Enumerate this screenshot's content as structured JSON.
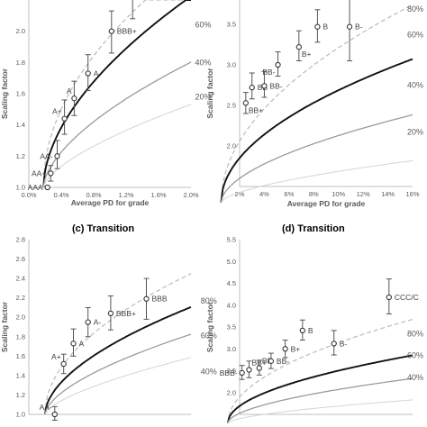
{
  "chart_data": [
    {
      "type": "line",
      "title": "",
      "xlabel": "Average PD for grade",
      "ylabel": "Scaling factor",
      "xlim": [
        0,
        2.0
      ],
      "ylim": [
        1.0,
        2.2
      ],
      "xticks": [
        {
          "v": 0,
          "label": "0.0%"
        },
        {
          "v": 0.4,
          "label": "0.4%"
        },
        {
          "v": 0.8,
          "label": "0.8%"
        },
        {
          "v": 1.2,
          "label": "1.2%"
        },
        {
          "v": 1.6,
          "label": "1.6%"
        },
        {
          "v": 2.0,
          "label": "2.0%"
        }
      ],
      "yticks": [
        {
          "v": 1.0,
          "label": "1.0"
        },
        {
          "v": 1.2,
          "label": "1.2"
        },
        {
          "v": 1.4,
          "label": "1.4"
        },
        {
          "v": 1.6,
          "label": "1.6"
        },
        {
          "v": 1.8,
          "label": "1.8"
        },
        {
          "v": 2.0,
          "label": "2.0"
        }
      ],
      "grid": false,
      "curves": [
        {
          "style": "dashed",
          "x0": 0.18,
          "y0": 1.0,
          "a": 1.07,
          "b": 0.5
        },
        {
          "style": "solid-black",
          "x0": 0.18,
          "y0": 1.0,
          "a": 0.88,
          "b": 0.55
        },
        {
          "style": "solid-gray",
          "x0": 0.18,
          "y0": 1.0,
          "a": 0.56,
          "b": 0.6
        },
        {
          "style": "solid-light",
          "x0": 0.18,
          "y0": 1.0,
          "a": 0.36,
          "b": 0.65
        }
      ],
      "percent_labels": [
        {
          "text": "60%",
          "x": 2.05,
          "y": 2.04
        },
        {
          "text": "40%",
          "x": 2.05,
          "y": 1.8
        },
        {
          "text": "20%",
          "x": 2.05,
          "y": 1.58
        }
      ],
      "points": [
        {
          "label": "AAA",
          "x": 0.23,
          "y": 1.0,
          "lo": 1.0,
          "hi": 1.0,
          "label_pos": "left"
        },
        {
          "label": "AA+",
          "x": 0.27,
          "y": 1.09,
          "lo": 1.04,
          "hi": 1.14,
          "label_pos": "left"
        },
        {
          "label": "AA-",
          "x": 0.35,
          "y": 1.2,
          "lo": 1.12,
          "hi": 1.3,
          "label_pos": "left"
        },
        {
          "label": "A+",
          "x": 0.44,
          "y": 1.44,
          "lo": 1.34,
          "hi": 1.56,
          "label_pos": "above-left"
        },
        {
          "label": "A",
          "x": 0.56,
          "y": 1.57,
          "lo": 1.46,
          "hi": 1.68,
          "label_pos": "above-left"
        },
        {
          "label": "A-",
          "x": 0.73,
          "y": 1.73,
          "lo": 1.62,
          "hi": 1.85,
          "label_pos": "right"
        },
        {
          "label": "BBB+",
          "x": 1.02,
          "y": 2.0,
          "lo": 1.86,
          "hi": 2.13,
          "label_pos": "right"
        },
        {
          "label": "",
          "x": 1.28,
          "y": 2.22,
          "lo": 2.08,
          "hi": 2.34,
          "label_pos": "none"
        }
      ]
    },
    {
      "type": "line",
      "title": "",
      "xlabel": "Average PD for grade",
      "ylabel": "Scaling factor",
      "xlim": [
        2,
        16
      ],
      "ylim": [
        1.5,
        3.8
      ],
      "xticks": [
        {
          "v": 2,
          "label": "2%"
        },
        {
          "v": 4,
          "label": "4%"
        },
        {
          "v": 6,
          "label": "6%"
        },
        {
          "v": 8,
          "label": "8%"
        },
        {
          "v": 10,
          "label": "10%"
        },
        {
          "v": 12,
          "label": "12%"
        },
        {
          "v": 14,
          "label": "14%"
        },
        {
          "v": 16,
          "label": "16%"
        }
      ],
      "yticks": [
        {
          "v": 2.0,
          "label": "2.0"
        },
        {
          "v": 2.5,
          "label": "2.5"
        },
        {
          "v": 3.0,
          "label": "3.0"
        },
        {
          "v": 3.5,
          "label": "3.5"
        }
      ],
      "grid": false,
      "curves": [
        {
          "style": "dashed",
          "x0": 0.5,
          "y0": 1.3,
          "a": 0.62,
          "b": 0.5
        },
        {
          "style": "solid-black",
          "x0": 0.5,
          "y0": 1.3,
          "a": 0.45,
          "b": 0.5
        },
        {
          "style": "solid-gray",
          "x0": 0.5,
          "y0": 1.3,
          "a": 0.24,
          "b": 0.55
        },
        {
          "style": "solid-light",
          "x0": 0.5,
          "y0": 1.3,
          "a": 0.1,
          "b": 0.6
        }
      ],
      "percent_labels": [
        {
          "text": "80%",
          "x": 16.4,
          "y": 3.82
        },
        {
          "text": "60%",
          "x": 16.4,
          "y": 3.37
        },
        {
          "text": "40%",
          "x": 16.4,
          "y": 2.75
        },
        {
          "text": "20%",
          "x": 16.4,
          "y": 2.17
        }
      ],
      "points": [
        {
          "label": "BB+",
          "x": 2.5,
          "y": 2.53,
          "lo": 2.4,
          "hi": 2.66,
          "label_pos": "below-right"
        },
        {
          "label": "BB",
          "x": 3.0,
          "y": 2.72,
          "lo": 2.58,
          "hi": 2.9,
          "label_pos": "right"
        },
        {
          "label": "BB-",
          "x": 4.0,
          "y": 2.74,
          "lo": 2.6,
          "hi": 2.92,
          "label_pos": "right"
        },
        {
          "label": "BB-",
          "x": 5.1,
          "y": 3.0,
          "lo": 2.86,
          "hi": 3.16,
          "label_pos": "below-left"
        },
        {
          "label": "B+",
          "x": 6.8,
          "y": 3.22,
          "lo": 3.05,
          "hi": 3.42,
          "label_pos": "below-right"
        },
        {
          "label": "B",
          "x": 8.3,
          "y": 3.47,
          "lo": 3.28,
          "hi": 3.68,
          "label_pos": "right"
        },
        {
          "label": "B-",
          "x": 10.9,
          "y": 3.47,
          "lo": 3.05,
          "hi": 3.9,
          "label_pos": "right"
        }
      ]
    },
    {
      "type": "line",
      "title": "(c) Transition",
      "xlabel": "",
      "ylabel": "Scaling factor",
      "xlim": [
        0,
        2.0
      ],
      "ylim": [
        1.0,
        2.8
      ],
      "xticks": [],
      "yticks": [
        {
          "v": 1.0,
          "label": "1.0"
        },
        {
          "v": 1.2,
          "label": "1.2"
        },
        {
          "v": 1.4,
          "label": "1.4"
        },
        {
          "v": 1.6,
          "label": "1.6"
        },
        {
          "v": 1.8,
          "label": "1.8"
        },
        {
          "v": 2.0,
          "label": "2.0"
        },
        {
          "v": 2.2,
          "label": "2.2"
        },
        {
          "v": 2.4,
          "label": "2.4"
        },
        {
          "v": 2.6,
          "label": "2.6"
        },
        {
          "v": 2.8,
          "label": "2.8"
        }
      ],
      "grid": false,
      "curves": [
        {
          "style": "dashed",
          "x0": 0.2,
          "y0": 1.0,
          "a": 1.08,
          "b": 0.5
        },
        {
          "style": "solid-black",
          "x0": 0.2,
          "y0": 1.0,
          "a": 0.8,
          "b": 0.55
        },
        {
          "style": "solid-gray",
          "x0": 0.2,
          "y0": 1.0,
          "a": 0.58,
          "b": 0.6
        },
        {
          "style": "solid-light",
          "x0": 0.2,
          "y0": 1.0,
          "a": 0.4,
          "b": 0.65
        }
      ],
      "percent_labels": [
        {
          "text": "80%",
          "x": 2.12,
          "y": 2.17
        },
        {
          "text": "60%",
          "x": 2.12,
          "y": 1.81
        },
        {
          "text": "40%",
          "x": 2.12,
          "y": 1.44
        }
      ],
      "points": [
        {
          "label": "AA-",
          "x": 0.32,
          "y": 1.0,
          "lo": 0.94,
          "hi": 1.08,
          "label_pos": "above-left"
        },
        {
          "label": "A+",
          "x": 0.43,
          "y": 1.52,
          "lo": 1.42,
          "hi": 1.62,
          "label_pos": "above-left"
        },
        {
          "label": "A",
          "x": 0.55,
          "y": 1.73,
          "lo": 1.6,
          "hi": 1.88,
          "label_pos": "right"
        },
        {
          "label": "A-",
          "x": 0.73,
          "y": 1.95,
          "lo": 1.8,
          "hi": 2.1,
          "label_pos": "right"
        },
        {
          "label": "BBB+",
          "x": 1.01,
          "y": 2.04,
          "lo": 1.87,
          "hi": 2.22,
          "label_pos": "right"
        },
        {
          "label": "BBB",
          "x": 1.45,
          "y": 2.19,
          "lo": 1.98,
          "hi": 2.4,
          "label_pos": "right"
        }
      ]
    },
    {
      "type": "line",
      "title": "(d) Transition",
      "xlabel": "",
      "ylabel": "Scaling factor",
      "xlim": [
        2,
        24
      ],
      "ylim": [
        1.5,
        5.5
      ],
      "xticks": [],
      "yticks": [
        {
          "v": 2.0,
          "label": "2.0"
        },
        {
          "v": 2.5,
          "label": "2.5"
        },
        {
          "v": 3.0,
          "label": "3.0"
        },
        {
          "v": 3.5,
          "label": "3.5"
        },
        {
          "v": 4.0,
          "label": "4.0"
        },
        {
          "v": 4.5,
          "label": "4.5"
        },
        {
          "v": 5.0,
          "label": "5.0"
        },
        {
          "v": 5.5,
          "label": "5.5"
        }
      ],
      "grid": false,
      "curves": [
        {
          "style": "dashed",
          "x0": 0.5,
          "y0": 1.3,
          "a": 0.49,
          "b": 0.5
        },
        {
          "style": "solid-black",
          "x0": 0.5,
          "y0": 1.3,
          "a": 0.32,
          "b": 0.5
        },
        {
          "style": "solid-gray",
          "x0": 0.5,
          "y0": 1.3,
          "a": 0.18,
          "b": 0.55
        },
        {
          "style": "solid-light",
          "x0": 0.5,
          "y0": 1.3,
          "a": 0.08,
          "b": 0.6
        }
      ],
      "percent_labels": [
        {
          "text": "80%",
          "x": 24.6,
          "y": 3.35
        },
        {
          "text": "60%",
          "x": 24.6,
          "y": 2.85
        },
        {
          "text": "40%",
          "x": 24.6,
          "y": 2.35
        }
      ],
      "points": [
        {
          "label": "BBB-",
          "x": 2.3,
          "y": 2.45,
          "lo": 2.3,
          "hi": 2.62,
          "label_pos": "left"
        },
        {
          "label": "BB+",
          "x": 3.2,
          "y": 2.52,
          "lo": 2.34,
          "hi": 2.72,
          "label_pos": "above-right"
        },
        {
          "label": "BB",
          "x": 4.5,
          "y": 2.56,
          "lo": 2.4,
          "hi": 2.74,
          "label_pos": "above-right"
        },
        {
          "label": "BB-",
          "x": 6.0,
          "y": 2.72,
          "lo": 2.55,
          "hi": 2.9,
          "label_pos": "right"
        },
        {
          "label": "B+",
          "x": 7.8,
          "y": 3.0,
          "lo": 2.8,
          "hi": 3.2,
          "label_pos": "right"
        },
        {
          "label": "B",
          "x": 10.0,
          "y": 3.42,
          "lo": 3.2,
          "hi": 3.66,
          "label_pos": "right"
        },
        {
          "label": "B-",
          "x": 14.0,
          "y": 3.12,
          "lo": 2.86,
          "hi": 3.42,
          "label_pos": "right"
        },
        {
          "label": "CCC/C",
          "x": 21.0,
          "y": 4.18,
          "lo": 3.8,
          "hi": 4.6,
          "label_pos": "right"
        }
      ]
    }
  ]
}
